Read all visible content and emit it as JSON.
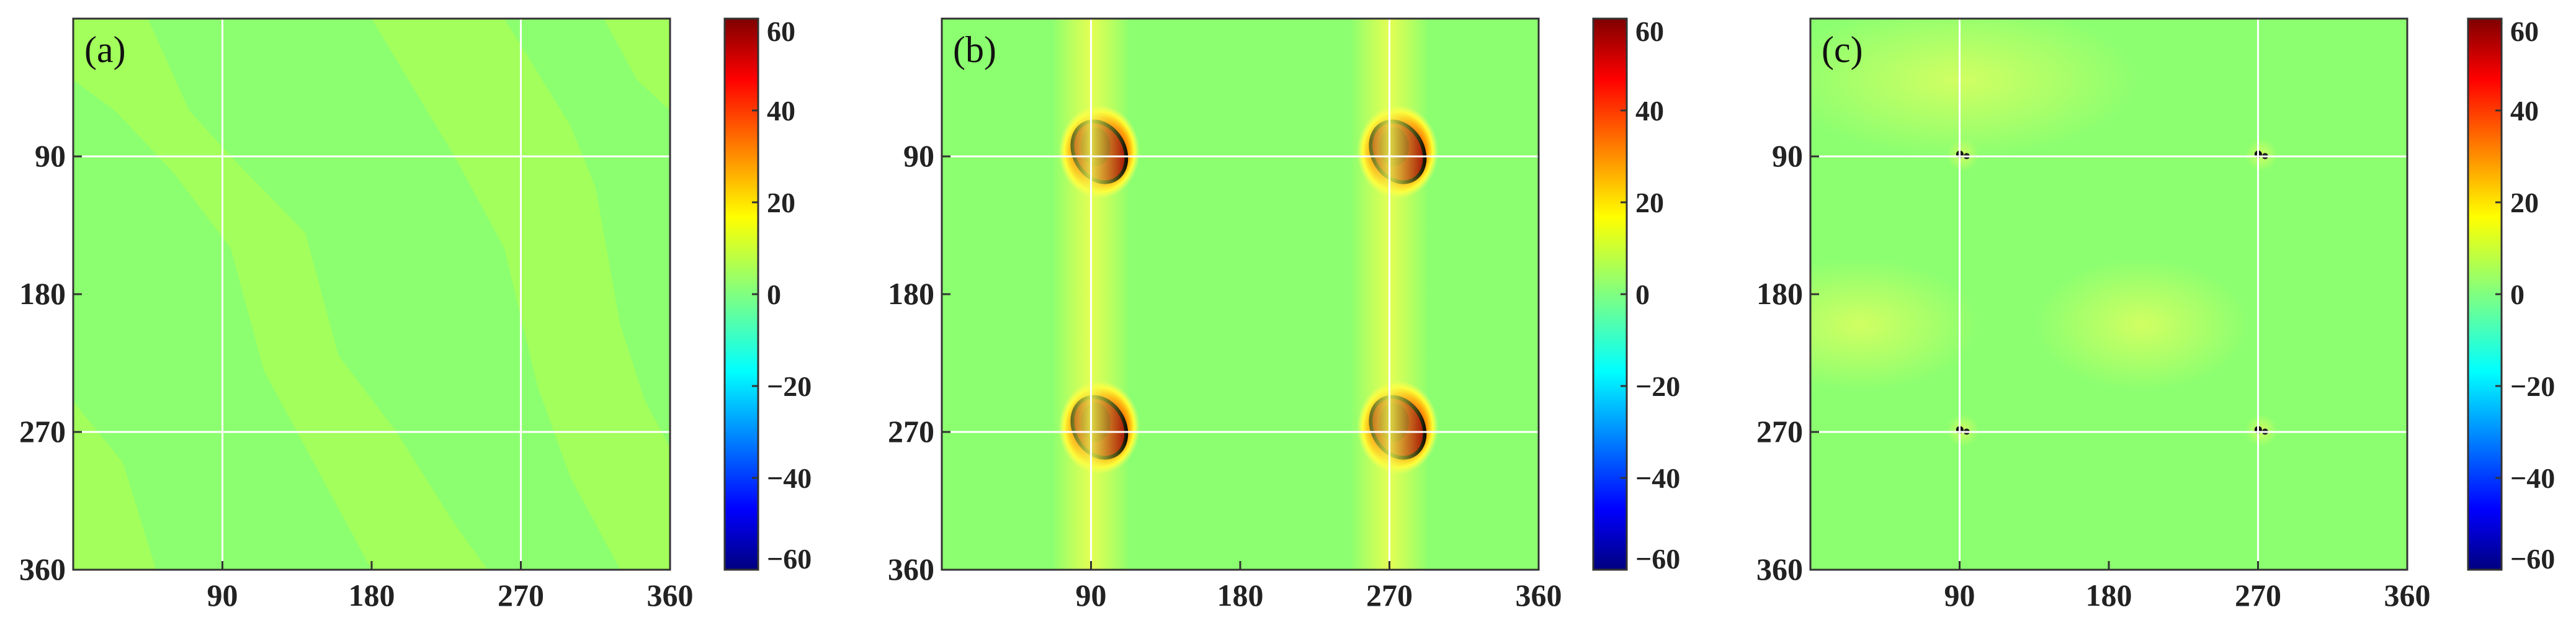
{
  "chart_data": [
    {
      "type": "heatmap",
      "panel_label": "(a)",
      "x_ticks": [
        90,
        180,
        270,
        360
      ],
      "y_ticks": [
        90,
        180,
        270,
        360
      ],
      "xlim": [
        0,
        360
      ],
      "ylim": [
        0,
        360
      ],
      "y_axis_direction": "downward",
      "grid": true,
      "grid_lines": [
        90,
        270
      ],
      "colorbar": {
        "min": -60,
        "max": 60,
        "ticks": [
          60,
          40,
          20,
          0,
          -20,
          -40,
          -60
        ],
        "colormap": "jet"
      },
      "background_value": 4,
      "features": [
        {
          "kind": "bands",
          "value": 8,
          "note": "faint diagonal wave-like bands, value ~5-8"
        }
      ]
    },
    {
      "type": "heatmap",
      "panel_label": "(b)",
      "x_ticks": [
        90,
        180,
        270,
        360
      ],
      "y_ticks": [
        90,
        180,
        270,
        360
      ],
      "xlim": [
        0,
        360
      ],
      "ylim": [
        0,
        360
      ],
      "y_axis_direction": "downward",
      "grid": true,
      "grid_lines": [
        90,
        270
      ],
      "colorbar": {
        "min": -60,
        "max": 60,
        "ticks": [
          60,
          40,
          20,
          0,
          -20,
          -40,
          -60
        ],
        "colormap": "jet"
      },
      "background_value": 4,
      "features": [
        {
          "kind": "hotspot",
          "x": 95,
          "y": 87,
          "peak": 60,
          "contour": true
        },
        {
          "kind": "hotspot",
          "x": 275,
          "y": 87,
          "peak": 60,
          "contour": true
        },
        {
          "kind": "hotspot",
          "x": 95,
          "y": 267,
          "peak": 60,
          "contour": true
        },
        {
          "kind": "hotspot",
          "x": 275,
          "y": 267,
          "peak": 60,
          "contour": true
        },
        {
          "kind": "vertical-band",
          "x": 90,
          "value": 15
        },
        {
          "kind": "vertical-band",
          "x": 270,
          "value": 15
        }
      ]
    },
    {
      "type": "heatmap",
      "panel_label": "(c)",
      "x_ticks": [
        90,
        180,
        270,
        360
      ],
      "y_ticks": [
        90,
        180,
        270,
        360
      ],
      "xlim": [
        0,
        360
      ],
      "ylim": [
        0,
        360
      ],
      "y_axis_direction": "downward",
      "grid": true,
      "grid_lines": [
        90,
        270
      ],
      "colorbar": {
        "min": -60,
        "max": 60,
        "ticks": [
          60,
          40,
          20,
          0,
          -20,
          -40,
          -60
        ],
        "colormap": "jet"
      },
      "background_value": 4,
      "features": [
        {
          "kind": "point-singularity",
          "x": 92,
          "y": 89,
          "peak": 60
        },
        {
          "kind": "point-singularity",
          "x": 272,
          "y": 89,
          "peak": 60
        },
        {
          "kind": "point-singularity",
          "x": 92,
          "y": 269,
          "peak": 60
        },
        {
          "kind": "point-singularity",
          "x": 272,
          "y": 269,
          "peak": 60
        },
        {
          "kind": "diffuse-region",
          "value": 7
        }
      ]
    }
  ]
}
